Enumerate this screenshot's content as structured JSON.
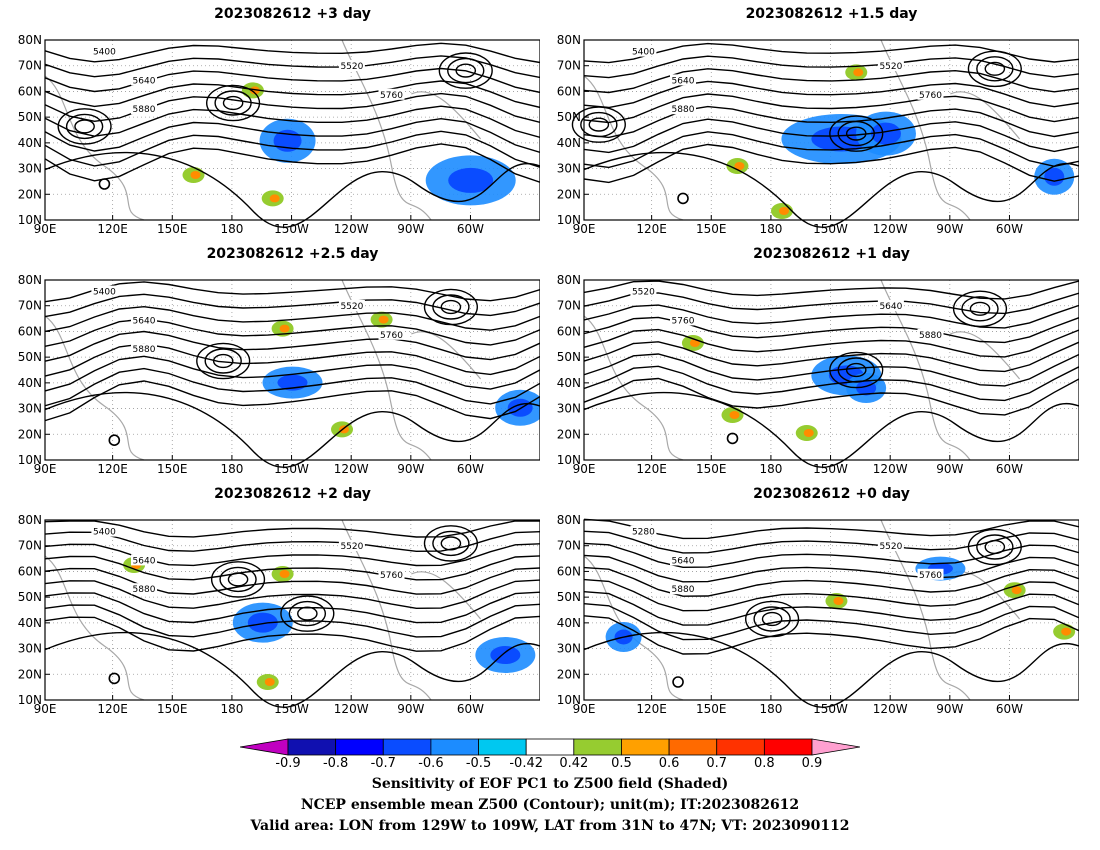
{
  "chart_data": {
    "type": "contour_map_panels",
    "xlabel": "",
    "ylabel": "",
    "xticks": [
      "90E",
      "120E",
      "150E",
      "180",
      "150W",
      "120W",
      "90W",
      "60W"
    ],
    "yticks": [
      "80N",
      "70N",
      "60N",
      "50N",
      "40N",
      "30N",
      "20N",
      "10N"
    ],
    "lon_range": [
      "90E",
      "45W"
    ],
    "lat_range": [
      "10N",
      "80N"
    ],
    "panels": [
      {
        "title": "2023082612 +3 day",
        "contour_labels": [
          "5400",
          "5520",
          "5640",
          "5760",
          "5880"
        ]
      },
      {
        "title": "2023082612 +1.5 day",
        "contour_labels": [
          "5400",
          "5520",
          "5640",
          "5760",
          "5880"
        ]
      },
      {
        "title": "2023082612 +2.5 day",
        "contour_labels": [
          "5400",
          "5520",
          "5640",
          "5760",
          "5880"
        ]
      },
      {
        "title": "2023082612 +1 day",
        "contour_labels": [
          "5520",
          "5640",
          "5760",
          "5880"
        ]
      },
      {
        "title": "2023082612 +2 day",
        "contour_labels": [
          "5400",
          "5520",
          "5640",
          "5760",
          "5880"
        ]
      },
      {
        "title": "2023082612 +0 day",
        "contour_labels": [
          "5280",
          "5520",
          "5640",
          "5760",
          "5880"
        ]
      }
    ],
    "colorbar": {
      "labels": [
        "-0.9",
        "-0.8",
        "-0.7",
        "-0.6",
        "-0.5",
        "-0.42",
        "0.42",
        "0.5",
        "0.6",
        "0.7",
        "0.8",
        "0.9"
      ],
      "colors": [
        "#c000c0",
        "#1010b0",
        "#0000ff",
        "#0a4cff",
        "#1c8cff",
        "#00c8f0",
        "#ffffff",
        "#96cc30",
        "#ffa000",
        "#ff6a00",
        "#ff3200",
        "#ff0000",
        "#ffa0d0"
      ]
    },
    "captions": [
      "Sensitivity of EOF PC1 to Z500 field (Shaded)",
      "NCEP ensemble mean Z500 (Contour); unit(m); IT:2023082612",
      "Valid area: LON from 129W to 109W, LAT from 31N to 47N; VT: 2023090112"
    ]
  }
}
